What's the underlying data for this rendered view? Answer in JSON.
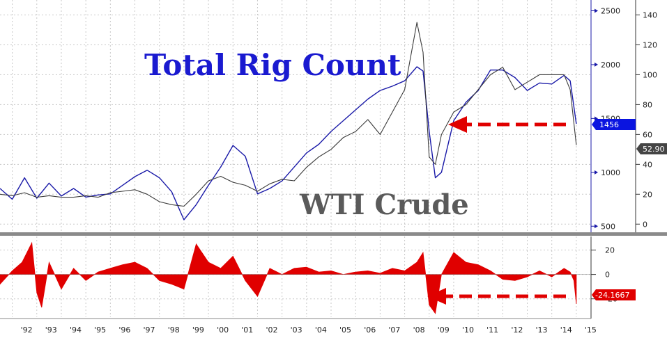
{
  "chart_data": [
    {
      "type": "line",
      "title": "Total Rig Count",
      "subtitle": "WTI Crude",
      "x_ticks": [
        "'92",
        "'93",
        "'94",
        "'95",
        "'96",
        "'97",
        "'98",
        "'99",
        "'00",
        "'01",
        "'02",
        "'03",
        "'04",
        "'05",
        "'06",
        "'07",
        "'08",
        "'09",
        "'10",
        "'11",
        "'12",
        "'13",
        "'14",
        "'15"
      ],
      "x": [
        1991.5,
        1992.0,
        1992.5,
        1993.0,
        1993.5,
        1994.0,
        1994.5,
        1995.0,
        1995.5,
        1996.0,
        1996.5,
        1997.0,
        1997.5,
        1998.0,
        1998.5,
        1999.0,
        1999.5,
        2000.0,
        2000.5,
        2001.0,
        2001.5,
        2002.0,
        2002.5,
        2003.0,
        2003.5,
        2004.0,
        2004.5,
        2005.0,
        2005.5,
        2006.0,
        2006.5,
        2007.0,
        2007.5,
        2008.0,
        2008.5,
        2008.75,
        2009.0,
        2009.25,
        2009.5,
        2010.0,
        2010.5,
        2011.0,
        2011.5,
        2012.0,
        2012.5,
        2013.0,
        2013.5,
        2014.0,
        2014.5,
        2014.75,
        2015.0
      ],
      "series": [
        {
          "name": "Total Rig Count",
          "color": "#1a1aa8",
          "axis": "left",
          "values": [
            850,
            750,
            950,
            760,
            900,
            780,
            850,
            770,
            790,
            800,
            880,
            960,
            1020,
            950,
            820,
            560,
            700,
            880,
            1050,
            1250,
            1150,
            800,
            850,
            920,
            1050,
            1180,
            1260,
            1380,
            1480,
            1580,
            1680,
            1760,
            1800,
            1850,
            1980,
            1940,
            1380,
            950,
            1000,
            1480,
            1650,
            1760,
            1950,
            1950,
            1880,
            1760,
            1830,
            1820,
            1900,
            1850,
            1450
          ]
        },
        {
          "name": "WTI Crude",
          "color": "#3a3a3a",
          "axis": "right",
          "values": [
            20,
            19,
            21,
            18,
            19,
            18,
            18,
            19,
            18,
            21,
            22,
            23,
            20,
            15,
            13,
            12,
            20,
            29,
            32,
            28,
            26,
            22,
            27,
            30,
            29,
            38,
            45,
            50,
            58,
            62,
            70,
            60,
            75,
            90,
            135,
            115,
            45,
            40,
            60,
            75,
            80,
            90,
            100,
            105,
            90,
            95,
            100,
            100,
            100,
            90,
            52.9
          ]
        }
      ],
      "left_ticks": [
        500,
        1000,
        1500,
        2000,
        2500
      ],
      "right_ticks": [
        0,
        20,
        40,
        60,
        80,
        100,
        120,
        140
      ],
      "ylim_left": [
        450,
        2600
      ],
      "ylim_right": [
        -5,
        150
      ],
      "last_value_label_left": "1456",
      "last_value_label_right": "52.90",
      "grid": true
    },
    {
      "type": "area",
      "series_color": "#e00000",
      "x": [
        1991.5,
        1992.0,
        1992.4,
        1992.8,
        1993.0,
        1993.2,
        1993.5,
        1994.0,
        1994.5,
        1995.0,
        1995.5,
        1996.0,
        1996.5,
        1997.0,
        1997.5,
        1998.0,
        1998.5,
        1999.0,
        1999.5,
        2000.0,
        2000.5,
        2001.0,
        2001.5,
        2002.0,
        2002.5,
        2003.0,
        2003.5,
        2004.0,
        2004.5,
        2005.0,
        2005.5,
        2006.0,
        2006.5,
        2007.0,
        2007.5,
        2008.0,
        2008.5,
        2008.75,
        2009.0,
        2009.25,
        2009.5,
        2010.0,
        2010.5,
        2011.0,
        2011.5,
        2012.0,
        2012.5,
        2013.0,
        2013.5,
        2014.0,
        2014.5,
        2014.75,
        2014.9,
        2015.0
      ],
      "values": [
        -8,
        3,
        10,
        26,
        -15,
        -27,
        10,
        -12,
        5,
        -5,
        2,
        5,
        8,
        10,
        5,
        -5,
        -8,
        -12,
        25,
        10,
        5,
        15,
        -5,
        -18,
        5,
        0,
        5,
        6,
        2,
        3,
        0,
        2,
        3,
        1,
        5,
        3,
        10,
        18,
        -25,
        -32,
        0,
        18,
        10,
        8,
        3,
        -4,
        -5,
        -2,
        3,
        -2,
        5,
        2,
        -5,
        -24.1667
      ],
      "ticks": [
        -20,
        0,
        20
      ],
      "ylim": [
        -35,
        30
      ],
      "last_value_label": "-24.1667"
    }
  ]
}
